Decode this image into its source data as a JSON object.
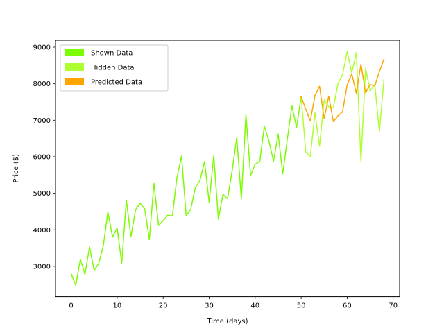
{
  "chart_data": {
    "type": "line",
    "title": "",
    "xlabel": "Time (days)",
    "ylabel": "Price ($)",
    "xlim": [
      -3.4,
      71.4
    ],
    "ylim": [
      2170,
      9190
    ],
    "xticks": [
      0,
      10,
      20,
      30,
      40,
      50,
      60,
      70
    ],
    "yticks": [
      3000,
      4000,
      5000,
      6000,
      7000,
      8000,
      9000
    ],
    "grid": false,
    "legend_position": "upper left",
    "series": [
      {
        "name": "Shown Data",
        "color": "#7cfc00",
        "x": [
          0,
          1,
          2,
          3,
          4,
          5,
          6,
          7,
          8,
          9,
          10,
          11,
          12,
          13,
          14,
          15,
          16,
          17,
          18,
          19,
          20,
          21,
          22,
          23,
          24,
          25,
          26,
          27,
          28,
          29,
          30,
          31,
          32,
          33,
          34,
          35,
          36,
          37,
          38,
          39,
          40,
          41,
          42,
          43,
          44,
          45,
          46,
          47,
          48,
          49,
          50
        ],
        "y": [
          2800,
          2480,
          3190,
          2780,
          3530,
          2890,
          3080,
          3570,
          4490,
          3800,
          4050,
          3090,
          4810,
          3810,
          4550,
          4730,
          4570,
          3730,
          5270,
          4120,
          4250,
          4400,
          4380,
          5430,
          6020,
          4390,
          4560,
          5160,
          5350,
          5870,
          4750,
          6040,
          4290,
          4970,
          4850,
          5620,
          6530,
          4850,
          7160,
          5490,
          5800,
          5870,
          6840,
          6430,
          5880,
          6620,
          5530,
          6490,
          7390,
          6800,
          7650
        ]
      },
      {
        "name": "Hidden Data",
        "color": "#adff2f",
        "x": [
          50,
          51,
          52,
          53,
          54,
          55,
          56,
          57,
          58,
          59,
          60,
          61,
          62,
          63,
          64,
          65,
          66,
          67,
          68
        ],
        "y": [
          7650,
          6130,
          6010,
          7200,
          6290,
          7560,
          7370,
          7340,
          8000,
          8250,
          8880,
          8300,
          8850,
          5870,
          8420,
          7800,
          7990,
          6690,
          8110
        ]
      },
      {
        "name": "Predicted Data",
        "color": "#ffa500",
        "x": [
          50,
          51,
          52,
          53,
          54,
          55,
          56,
          57,
          58,
          59,
          60,
          61,
          62,
          63,
          64,
          65,
          66,
          67,
          68
        ],
        "y": [
          7650,
          7300,
          6980,
          7680,
          7930,
          7040,
          7660,
          6960,
          7120,
          7230,
          7970,
          8270,
          7740,
          8540,
          7750,
          7980,
          7940,
          8330,
          8670
        ]
      }
    ]
  }
}
